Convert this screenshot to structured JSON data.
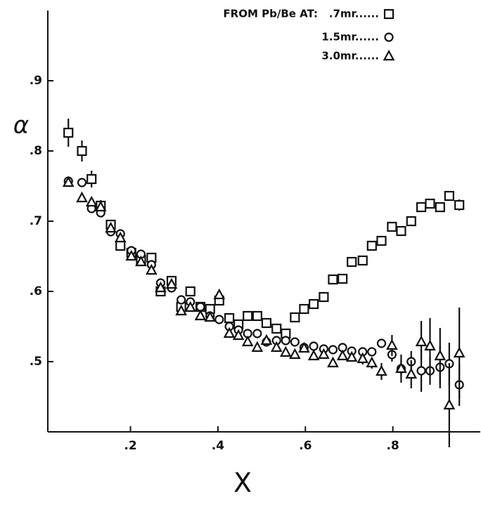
{
  "chart_data": {
    "type": "scatter",
    "legend_title": "FROM Pb/Be AT:",
    "x_label": "X",
    "y_label": "α",
    "xlim": [
      0.011,
      1.0
    ],
    "ylim": [
      0.4,
      1.0
    ],
    "xticks": [
      {
        "value": 0.2,
        "label": ".2"
      },
      {
        "value": 0.4,
        "label": ".4"
      },
      {
        "value": 0.6,
        "label": ".6"
      },
      {
        "value": 0.8,
        "label": ".8"
      }
    ],
    "yticks": [
      {
        "value": 0.5,
        "label": ".5"
      },
      {
        "value": 0.6,
        "label": ".6"
      },
      {
        "value": 0.7,
        "label": ".7"
      },
      {
        "value": 0.8,
        "label": ".8"
      },
      {
        "value": 0.9,
        "label": ".9"
      }
    ],
    "x": [
      0.058,
      0.089,
      0.111,
      0.132,
      0.155,
      0.177,
      0.202,
      0.224,
      0.248,
      0.269,
      0.294,
      0.316,
      0.337,
      0.36,
      0.382,
      0.403,
      0.426,
      0.447,
      0.468,
      0.49,
      0.511,
      0.534,
      0.555,
      0.576,
      0.597,
      0.619,
      0.642,
      0.663,
      0.685,
      0.706,
      0.731,
      0.752,
      0.774,
      0.798,
      0.819,
      0.842,
      0.865,
      0.885,
      0.908,
      0.929,
      0.952
    ],
    "series": [
      {
        "name": ".7mr......",
        "marker": "square",
        "color": "#111111",
        "values": [
          0.826,
          0.8,
          0.76,
          0.722,
          0.695,
          0.665,
          0.655,
          0.645,
          0.648,
          0.6,
          0.615,
          0.578,
          0.6,
          0.578,
          0.575,
          0.587,
          0.562,
          0.553,
          0.565,
          0.565,
          0.555,
          0.547,
          0.54,
          0.563,
          0.575,
          0.582,
          0.592,
          0.617,
          0.618,
          0.642,
          0.644,
          0.665,
          0.672,
          0.692,
          0.686,
          0.7,
          0.72,
          0.725,
          0.72,
          0.736,
          0.723
        ],
        "errors": [
          0.02,
          0.015,
          0.012,
          0.008,
          0.007,
          0.006,
          0.006,
          0.006,
          0.006,
          0.006,
          0.006,
          0.006,
          0.006,
          0.006,
          0.006,
          0.006,
          0.006,
          0.006,
          0.006,
          0.006,
          0.006,
          0.006,
          0.006,
          0.006,
          0.006,
          0.006,
          0.006,
          0.006,
          0.006,
          0.006,
          0.006,
          0.006,
          0.006,
          0.006,
          0.006,
          0.006,
          0.006,
          0.006,
          0.006,
          0.006,
          0.008
        ]
      },
      {
        "name": "1.5mr......",
        "marker": "circle",
        "color": "#111111",
        "values": [
          0.757,
          0.755,
          0.718,
          0.712,
          0.685,
          0.682,
          0.658,
          0.653,
          0.638,
          0.612,
          0.605,
          0.588,
          0.585,
          0.578,
          0.565,
          0.56,
          0.55,
          0.545,
          0.54,
          0.54,
          0.528,
          0.53,
          0.53,
          0.528,
          0.52,
          0.522,
          0.518,
          0.517,
          0.52,
          0.515,
          0.514,
          0.514,
          0.526,
          0.51,
          0.49,
          0.5,
          0.487,
          0.487,
          0.492,
          0.497,
          0.467
        ],
        "errors": [
          0.006,
          0.006,
          0.006,
          0.006,
          0.006,
          0.006,
          0.006,
          0.006,
          0.006,
          0.006,
          0.006,
          0.006,
          0.006,
          0.006,
          0.006,
          0.006,
          0.006,
          0.006,
          0.006,
          0.006,
          0.006,
          0.006,
          0.006,
          0.006,
          0.006,
          0.006,
          0.006,
          0.006,
          0.006,
          0.006,
          0.006,
          0.006,
          0.006,
          0.01,
          0.012,
          0.015,
          0.03,
          0.02,
          0.03,
          0.03,
          0.03
        ]
      },
      {
        "name": "3.0mr......",
        "marker": "triangle",
        "color": "#111111",
        "values": [
          0.755,
          0.733,
          0.727,
          0.72,
          0.69,
          0.676,
          0.65,
          0.642,
          0.63,
          0.605,
          0.61,
          0.572,
          0.577,
          0.565,
          0.563,
          0.595,
          0.54,
          0.537,
          0.528,
          0.52,
          0.53,
          0.52,
          0.513,
          0.51,
          0.519,
          0.508,
          0.51,
          0.498,
          0.508,
          0.506,
          0.504,
          0.498,
          0.486,
          0.523,
          0.49,
          0.482,
          0.528,
          0.522,
          0.508,
          0.438,
          0.512
        ],
        "errors": [
          0.006,
          0.006,
          0.006,
          0.006,
          0.006,
          0.006,
          0.006,
          0.006,
          0.006,
          0.006,
          0.006,
          0.006,
          0.006,
          0.006,
          0.006,
          0.006,
          0.006,
          0.006,
          0.006,
          0.006,
          0.006,
          0.006,
          0.006,
          0.006,
          0.006,
          0.006,
          0.006,
          0.006,
          0.006,
          0.006,
          0.008,
          0.008,
          0.012,
          0.015,
          0.02,
          0.02,
          0.03,
          0.04,
          0.04,
          0.06,
          0.065
        ]
      }
    ]
  }
}
